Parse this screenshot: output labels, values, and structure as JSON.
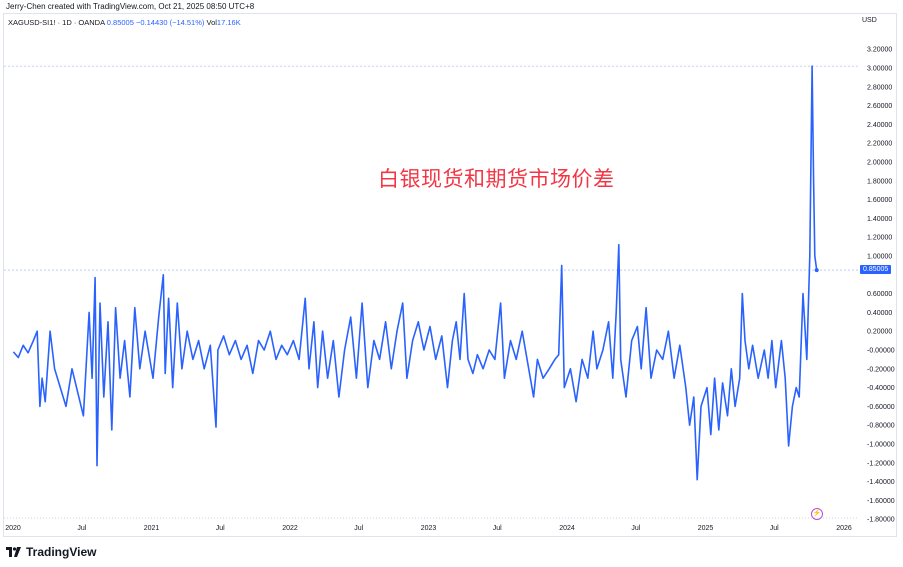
{
  "credit": "Jerry-Chen created with TradingView.com, Oct 21, 2025 08:50 UTC+8",
  "legend": {
    "symbol": "XAGUSD-SI1! · 1D · OANDA",
    "last": "0.85005",
    "change": "−0.14430 (−14.51%)",
    "vol_label": "Vol",
    "vol": "17.16K"
  },
  "annotation": "白银现货和期货市场价差",
  "currency": "USD",
  "last_price_label": "0.85005",
  "brand": "TradingView",
  "colors": {
    "line": "#2962ff",
    "annotation": "#f23645",
    "label_bg": "#2962ff"
  },
  "chart_data": {
    "type": "line",
    "title": "",
    "xlabel": "",
    "ylabel": "",
    "ylim": [
      -1.8,
      3.3
    ],
    "xlim": [
      "2020-01-01",
      "2026-02-01"
    ],
    "grid": false,
    "y_ticks": [
      "3.20000",
      "3.00000",
      "2.80000",
      "2.60000",
      "2.40000",
      "2.20000",
      "2.00000",
      "1.80000",
      "1.60000",
      "1.40000",
      "1.20000",
      "1.00000",
      "0.60000",
      "0.40000",
      "0.20000",
      "-0.00000",
      "-0.20000",
      "-0.40000",
      "-0.60000",
      "-0.80000",
      "-1.00000",
      "-1.20000",
      "-1.40000",
      "-1.60000",
      "-1.80000"
    ],
    "x_ticks": [
      {
        "date": "2020-01-01",
        "label": "2020"
      },
      {
        "date": "2020-07-01",
        "label": "Jul"
      },
      {
        "date": "2021-01-01",
        "label": "2021"
      },
      {
        "date": "2021-07-01",
        "label": "Jul"
      },
      {
        "date": "2022-01-01",
        "label": "2022"
      },
      {
        "date": "2022-07-01",
        "label": "Jul"
      },
      {
        "date": "2023-01-01",
        "label": "2023"
      },
      {
        "date": "2023-07-01",
        "label": "Jul"
      },
      {
        "date": "2024-01-01",
        "label": "2024"
      },
      {
        "date": "2024-07-01",
        "label": "Jul"
      },
      {
        "date": "2025-01-01",
        "label": "2025"
      },
      {
        "date": "2025-07-01",
        "label": "Jul"
      },
      {
        "date": "2026-01-01",
        "label": "2026"
      }
    ],
    "reference_lines": [
      3.02,
      0.85005
    ],
    "series": [
      {
        "points": [
          [
            "2020-01-02",
            -0.02
          ],
          [
            "2020-01-15",
            -0.08
          ],
          [
            "2020-01-28",
            0.05
          ],
          [
            "2020-02-10",
            -0.03
          ],
          [
            "2020-02-24",
            0.1
          ],
          [
            "2020-03-05",
            0.2
          ],
          [
            "2020-03-12",
            -0.6
          ],
          [
            "2020-03-18",
            -0.3
          ],
          [
            "2020-03-26",
            -0.55
          ],
          [
            "2020-04-08",
            0.2
          ],
          [
            "2020-04-20",
            -0.2
          ],
          [
            "2020-05-05",
            -0.4
          ],
          [
            "2020-05-20",
            -0.6
          ],
          [
            "2020-06-05",
            -0.2
          ],
          [
            "2020-06-20",
            -0.45
          ],
          [
            "2020-07-05",
            -0.7
          ],
          [
            "2020-07-20",
            0.4
          ],
          [
            "2020-07-28",
            -0.3
          ],
          [
            "2020-08-05",
            0.77
          ],
          [
            "2020-08-10",
            -1.23
          ],
          [
            "2020-08-18",
            0.5
          ],
          [
            "2020-08-28",
            -0.5
          ],
          [
            "2020-09-08",
            0.3
          ],
          [
            "2020-09-18",
            -0.85
          ],
          [
            "2020-09-28",
            0.45
          ],
          [
            "2020-10-10",
            -0.3
          ],
          [
            "2020-10-22",
            0.1
          ],
          [
            "2020-11-05",
            -0.5
          ],
          [
            "2020-11-18",
            0.45
          ],
          [
            "2020-12-01",
            -0.2
          ],
          [
            "2020-12-15",
            0.2
          ],
          [
            "2021-01-05",
            -0.3
          ],
          [
            "2021-01-20",
            0.35
          ],
          [
            "2021-02-01",
            0.8
          ],
          [
            "2021-02-06",
            -0.25
          ],
          [
            "2021-02-15",
            0.55
          ],
          [
            "2021-02-26",
            -0.4
          ],
          [
            "2021-03-10",
            0.5
          ],
          [
            "2021-03-22",
            -0.2
          ],
          [
            "2021-04-05",
            0.2
          ],
          [
            "2021-04-20",
            -0.1
          ],
          [
            "2021-05-05",
            0.1
          ],
          [
            "2021-05-20",
            -0.2
          ],
          [
            "2021-06-05",
            0.05
          ],
          [
            "2021-06-20",
            -0.82
          ],
          [
            "2021-06-25",
            0.0
          ],
          [
            "2021-07-10",
            0.15
          ],
          [
            "2021-07-25",
            -0.05
          ],
          [
            "2021-08-10",
            0.1
          ],
          [
            "2021-08-25",
            -0.1
          ],
          [
            "2021-09-10",
            0.05
          ],
          [
            "2021-09-25",
            -0.25
          ],
          [
            "2021-10-10",
            0.1
          ],
          [
            "2021-10-25",
            0.0
          ],
          [
            "2021-11-10",
            0.2
          ],
          [
            "2021-11-25",
            -0.1
          ],
          [
            "2021-12-10",
            0.05
          ],
          [
            "2021-12-25",
            -0.05
          ],
          [
            "2022-01-10",
            0.1
          ],
          [
            "2022-01-25",
            -0.1
          ],
          [
            "2022-02-10",
            0.55
          ],
          [
            "2022-02-20",
            -0.2
          ],
          [
            "2022-03-05",
            0.3
          ],
          [
            "2022-03-15",
            -0.4
          ],
          [
            "2022-03-28",
            0.2
          ],
          [
            "2022-04-10",
            -0.3
          ],
          [
            "2022-04-25",
            0.1
          ],
          [
            "2022-05-10",
            -0.5
          ],
          [
            "2022-05-25",
            0.0
          ],
          [
            "2022-06-10",
            0.35
          ],
          [
            "2022-06-25",
            -0.3
          ],
          [
            "2022-07-10",
            0.5
          ],
          [
            "2022-07-25",
            -0.4
          ],
          [
            "2022-08-10",
            0.1
          ],
          [
            "2022-08-25",
            -0.1
          ],
          [
            "2022-09-10",
            0.3
          ],
          [
            "2022-09-25",
            -0.2
          ],
          [
            "2022-10-10",
            0.2
          ],
          [
            "2022-10-25",
            0.5
          ],
          [
            "2022-11-05",
            -0.3
          ],
          [
            "2022-11-20",
            0.1
          ],
          [
            "2022-12-05",
            0.3
          ],
          [
            "2022-12-20",
            0.0
          ],
          [
            "2023-01-05",
            0.25
          ],
          [
            "2023-01-20",
            -0.1
          ],
          [
            "2023-02-05",
            0.15
          ],
          [
            "2023-02-20",
            -0.4
          ],
          [
            "2023-03-05",
            0.1
          ],
          [
            "2023-03-15",
            0.3
          ],
          [
            "2023-03-25",
            -0.1
          ],
          [
            "2023-04-05",
            0.6
          ],
          [
            "2023-04-15",
            -0.1
          ],
          [
            "2023-04-28",
            -0.25
          ],
          [
            "2023-05-10",
            -0.05
          ],
          [
            "2023-05-25",
            -0.2
          ],
          [
            "2023-06-10",
            0.0
          ],
          [
            "2023-06-25",
            -0.1
          ],
          [
            "2023-07-10",
            0.5
          ],
          [
            "2023-07-20",
            -0.3
          ],
          [
            "2023-08-05",
            0.1
          ],
          [
            "2023-08-20",
            -0.1
          ],
          [
            "2023-09-05",
            0.2
          ],
          [
            "2023-09-20",
            -0.15
          ],
          [
            "2023-10-05",
            -0.5
          ],
          [
            "2023-10-15",
            -0.1
          ],
          [
            "2023-10-30",
            -0.3
          ],
          [
            "2023-11-15",
            -0.2
          ],
          [
            "2023-11-30",
            -0.1
          ],
          [
            "2023-12-10",
            -0.05
          ],
          [
            "2023-12-18",
            0.9
          ],
          [
            "2023-12-25",
            -0.4
          ],
          [
            "2024-01-10",
            -0.2
          ],
          [
            "2024-01-25",
            -0.55
          ],
          [
            "2024-02-10",
            -0.1
          ],
          [
            "2024-02-25",
            -0.3
          ],
          [
            "2024-03-10",
            0.2
          ],
          [
            "2024-03-20",
            -0.2
          ],
          [
            "2024-04-05",
            0.0
          ],
          [
            "2024-04-20",
            0.3
          ],
          [
            "2024-05-01",
            -0.3
          ],
          [
            "2024-05-10",
            0.4
          ],
          [
            "2024-05-17",
            1.12
          ],
          [
            "2024-05-22",
            -0.1
          ],
          [
            "2024-06-05",
            -0.5
          ],
          [
            "2024-06-20",
            0.1
          ],
          [
            "2024-07-05",
            0.25
          ],
          [
            "2024-07-15",
            -0.2
          ],
          [
            "2024-07-28",
            0.45
          ],
          [
            "2024-08-10",
            -0.3
          ],
          [
            "2024-08-25",
            0.0
          ],
          [
            "2024-09-10",
            -0.1
          ],
          [
            "2024-09-25",
            0.2
          ],
          [
            "2024-10-10",
            -0.3
          ],
          [
            "2024-10-25",
            0.05
          ],
          [
            "2024-11-10",
            -0.4
          ],
          [
            "2024-11-20",
            -0.8
          ],
          [
            "2024-12-01",
            -0.5
          ],
          [
            "2024-12-10",
            -1.38
          ],
          [
            "2024-12-20",
            -0.6
          ],
          [
            "2025-01-05",
            -0.4
          ],
          [
            "2025-01-15",
            -0.9
          ],
          [
            "2025-01-25",
            -0.3
          ],
          [
            "2025-02-05",
            -0.85
          ],
          [
            "2025-02-15",
            -0.35
          ],
          [
            "2025-02-28",
            -0.7
          ],
          [
            "2025-03-10",
            -0.2
          ],
          [
            "2025-03-20",
            -0.6
          ],
          [
            "2025-04-01",
            -0.3
          ],
          [
            "2025-04-08",
            0.6
          ],
          [
            "2025-04-15",
            0.1
          ],
          [
            "2025-04-25",
            -0.2
          ],
          [
            "2025-05-05",
            0.05
          ],
          [
            "2025-05-20",
            -0.3
          ],
          [
            "2025-06-05",
            0.0
          ],
          [
            "2025-06-15",
            -0.3
          ],
          [
            "2025-06-25",
            0.1
          ],
          [
            "2025-07-05",
            -0.4
          ],
          [
            "2025-07-20",
            0.1
          ],
          [
            "2025-07-30",
            -0.3
          ],
          [
            "2025-08-08",
            -1.02
          ],
          [
            "2025-08-18",
            -0.6
          ],
          [
            "2025-08-28",
            -0.4
          ],
          [
            "2025-09-05",
            -0.5
          ],
          [
            "2025-09-15",
            0.6
          ],
          [
            "2025-09-25",
            -0.1
          ],
          [
            "2025-10-03",
            1.0
          ],
          [
            "2025-10-09",
            3.02
          ],
          [
            "2025-10-13",
            1.8
          ],
          [
            "2025-10-16",
            1.0
          ],
          [
            "2025-10-21",
            0.85005
          ]
        ]
      }
    ]
  }
}
